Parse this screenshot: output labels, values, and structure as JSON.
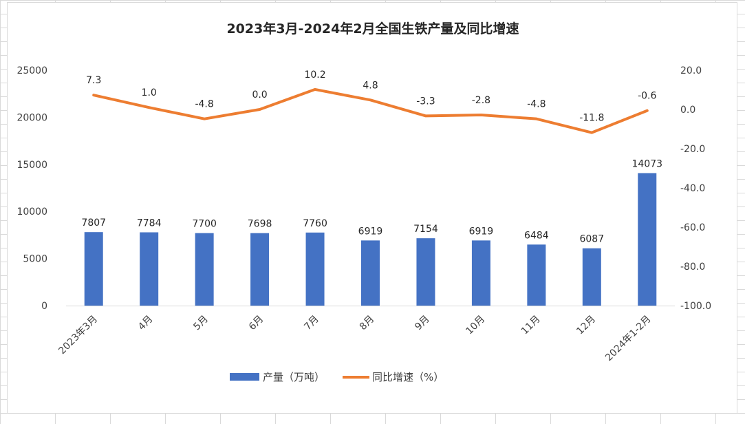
{
  "chart_data": {
    "type": "bar+line",
    "title": "2023年3月-2024年2月全国生铁产量及同比增速",
    "categories": [
      "2023年3月",
      "4月",
      "5月",
      "6月",
      "7月",
      "8月",
      "9月",
      "10月",
      "11月",
      "12月",
      "2024年1-2月"
    ],
    "series": [
      {
        "name": "产量（万吨）",
        "type": "bar",
        "axis": "left",
        "color": "#4472c4",
        "values": [
          7807,
          7784,
          7700,
          7698,
          7760,
          6919,
          7154,
          6919,
          6484,
          6087,
          14073
        ],
        "labels": [
          "7807",
          "7784",
          "7700",
          "7698",
          "7760",
          "6919",
          "7154",
          "6919",
          "6484",
          "6087",
          "14073"
        ]
      },
      {
        "name": "同比增速（%）",
        "type": "line",
        "axis": "right",
        "color": "#ed7d31",
        "values": [
          7.3,
          1.0,
          -4.8,
          0.0,
          10.2,
          4.8,
          -3.3,
          -2.8,
          -4.8,
          -11.8,
          -0.6
        ],
        "labels": [
          "7.3",
          "1.0",
          "-4.8",
          "0.0",
          "10.2",
          "4.8",
          "-3.3",
          "-2.8",
          "-4.8",
          "-11.8",
          "-0.6"
        ]
      }
    ],
    "y_left": {
      "ylim": [
        0,
        25000
      ],
      "ticks": [
        "0",
        "5000",
        "10000",
        "15000",
        "20000",
        "25000"
      ]
    },
    "y_right": {
      "ylim": [
        -100,
        20
      ],
      "ticks": [
        "-100.0",
        "-80.0",
        "-60.0",
        "-40.0",
        "-20.0",
        "0.0",
        "20.0"
      ]
    },
    "legend_position": "bottom",
    "grid": false
  }
}
